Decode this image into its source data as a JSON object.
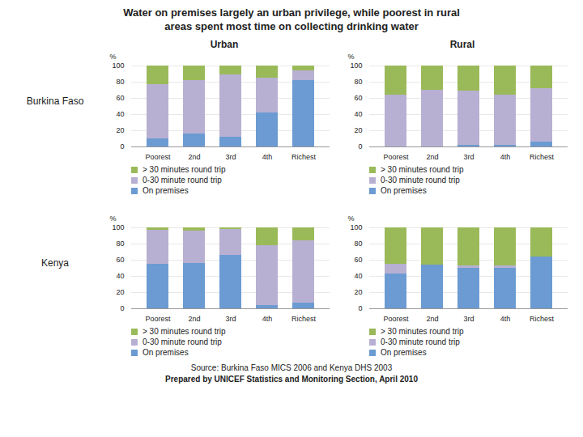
{
  "title": "Water on premises largely an urban privilege, while poorest in rural\nareas spent most time on collecting drinking water",
  "annotations": [
    "Source: Burkina Faso MICS 2006 and Kenya DHS 2003",
    "Prepared by UNICEF Statistics and Monitoring Section, April 2010"
  ],
  "chart_data": [
    {
      "type": "bar",
      "stacked": true,
      "title": "Urban",
      "annotations": [
        "Burkina Faso"
      ],
      "y_label": "%",
      "categories": [
        "Poorest",
        "2nd",
        "3rd",
        "4th",
        "Richest"
      ],
      "series": [
        {
          "name": "On premises",
          "color": "#6b9bd2",
          "values": [
            10,
            16,
            12,
            42,
            82
          ]
        },
        {
          "name": "0-30 minute round trip",
          "color": "#b8b0d2",
          "values": [
            67,
            66,
            77,
            43,
            12
          ]
        },
        {
          "name": "> 30 minutes round trip",
          "color": "#9aba5a",
          "values": [
            23,
            18,
            11,
            15,
            6
          ]
        }
      ],
      "ylim": [
        0,
        100
      ],
      "yticks": [
        0,
        20,
        40,
        60,
        80,
        100
      ],
      "grid": true,
      "legend": "bottom"
    },
    {
      "type": "bar",
      "stacked": true,
      "title": "Rural",
      "y_label": "%",
      "categories": [
        "Poorest",
        "2nd",
        "3rd",
        "4th",
        "Richest"
      ],
      "series": [
        {
          "name": "On premises",
          "color": "#6b9bd2",
          "values": [
            0,
            0,
            2,
            2,
            6
          ]
        },
        {
          "name": "0-30 minute round trip",
          "color": "#b8b0d2",
          "values": [
            64,
            70,
            67,
            62,
            66
          ]
        },
        {
          "name": "> 30 minutes round trip",
          "color": "#9aba5a",
          "values": [
            36,
            30,
            31,
            36,
            28
          ]
        }
      ],
      "ylim": [
        0,
        100
      ],
      "yticks": [
        0,
        20,
        40,
        60,
        80,
        100
      ],
      "grid": true,
      "legend": "bottom"
    },
    {
      "type": "bar",
      "stacked": true,
      "annotations": [
        "Kenya"
      ],
      "y_label": "%",
      "categories": [
        "Poorest",
        "2nd",
        "3rd",
        "4th",
        "Richest"
      ],
      "series": [
        {
          "name": "On premises",
          "color": "#6b9bd2",
          "values": [
            55,
            56,
            66,
            4,
            7
          ]
        },
        {
          "name": "0-30 minute round trip",
          "color": "#b8b0d2",
          "values": [
            42,
            40,
            32,
            74,
            77
          ]
        },
        {
          "name": "> 30 minutes round trip",
          "color": "#9aba5a",
          "values": [
            3,
            4,
            2,
            22,
            16
          ]
        }
      ],
      "ylim": [
        0,
        100
      ],
      "yticks": [
        0,
        20,
        40,
        60,
        80,
        100
      ],
      "grid": true,
      "legend": "bottom"
    },
    {
      "type": "bar",
      "stacked": true,
      "y_label": "%",
      "categories": [
        "Poorest",
        "2nd",
        "3rd",
        "4th",
        "Richest"
      ],
      "series": [
        {
          "name": "On premises",
          "color": "#6b9bd2",
          "values": [
            43,
            54,
            50,
            50,
            64
          ]
        },
        {
          "name": "0-30 minute round trip",
          "color": "#b8b0d2",
          "values": [
            12,
            0,
            3,
            3,
            0
          ]
        },
        {
          "name": "> 30 minutes round trip",
          "color": "#9aba5a",
          "values": [
            45,
            46,
            47,
            47,
            36
          ]
        }
      ],
      "ylim": [
        0,
        100
      ],
      "yticks": [
        0,
        20,
        40,
        60,
        80,
        100
      ],
      "grid": true,
      "legend": "bottom"
    }
  ]
}
